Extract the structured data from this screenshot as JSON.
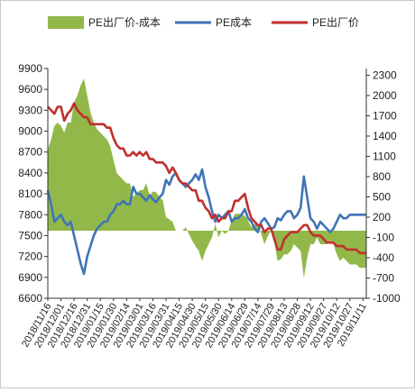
{
  "chart_data": {
    "type": "area+line",
    "legend": {
      "placement": "top",
      "items": [
        {
          "label": "PE出厂价-成本",
          "color": "#92b84a",
          "kind": "area"
        },
        {
          "label": "PE成本",
          "color": "#3f74b6",
          "kind": "line"
        },
        {
          "label": "PE出厂价",
          "color": "#c0302e",
          "kind": "line"
        }
      ]
    },
    "left_axis": {
      "ylim": [
        6600,
        9900
      ],
      "ticks": [
        6600,
        6900,
        7200,
        7500,
        7800,
        8100,
        8400,
        8700,
        9000,
        9300,
        9600,
        9900
      ],
      "tick_labels": [
        "6600",
        "6900",
        "7200",
        "7500",
        "7800",
        "8100",
        "8400",
        "8700",
        "9000",
        "9300",
        "9600",
        "9900"
      ]
    },
    "right_axis": {
      "ylim": [
        -1000,
        2400
      ],
      "ticks": [
        -1000,
        -700,
        -400,
        -100,
        200,
        500,
        800,
        1100,
        1400,
        1700,
        2000,
        2300
      ],
      "tick_labels": [
        "-1000",
        "-700",
        "-400",
        "-100",
        "200",
        "500",
        "800",
        "1100",
        "1400",
        "1700",
        "2000",
        "2300"
      ]
    },
    "x_axis": {
      "tick_labels": [
        "2018/11/16",
        "2018/12/01",
        "2018/12/16",
        "2018/12/31",
        "2019/01/15",
        "2019/01/30",
        "2019/02/14",
        "2019/03/01",
        "2019/03/16",
        "2019/03/31",
        "2019/04/15",
        "2019/04/30",
        "2019/05/15",
        "2019/05/30",
        "2019/06/14",
        "2019/06/29",
        "2019/07/14",
        "2019/07/29",
        "2019/08/13",
        "2019/08/28",
        "2019/09/12",
        "2019/09/27",
        "2019/10/12",
        "2019/10/27",
        "2019/11/11"
      ]
    },
    "x": [
      "2018/11/16",
      "2018/11/20",
      "2018/11/24",
      "2018/11/28",
      "2018/12/01",
      "2018/12/05",
      "2018/12/09",
      "2018/12/13",
      "2018/12/16",
      "2018/12/20",
      "2018/12/24",
      "2018/12/28",
      "2018/12/31",
      "2019/01/04",
      "2019/01/08",
      "2019/01/12",
      "2019/01/15",
      "2019/01/19",
      "2019/01/23",
      "2019/01/27",
      "2019/01/30",
      "2019/02/03",
      "2019/02/07",
      "2019/02/11",
      "2019/02/14",
      "2019/02/18",
      "2019/02/22",
      "2019/02/26",
      "2019/03/01",
      "2019/03/05",
      "2019/03/09",
      "2019/03/13",
      "2019/03/16",
      "2019/03/20",
      "2019/03/24",
      "2019/03/28",
      "2019/03/31",
      "2019/04/04",
      "2019/04/08",
      "2019/04/12",
      "2019/04/15",
      "2019/04/19",
      "2019/04/23",
      "2019/04/27",
      "2019/04/30",
      "2019/05/04",
      "2019/05/08",
      "2019/05/12",
      "2019/05/15",
      "2019/05/19",
      "2019/05/23",
      "2019/05/27",
      "2019/05/30",
      "2019/06/03",
      "2019/06/07",
      "2019/06/11",
      "2019/06/14",
      "2019/06/18",
      "2019/06/22",
      "2019/06/26",
      "2019/06/29",
      "2019/07/03",
      "2019/07/07",
      "2019/07/11",
      "2019/07/14",
      "2019/07/18",
      "2019/07/22",
      "2019/07/26",
      "2019/07/29",
      "2019/08/02",
      "2019/08/06",
      "2019/08/10",
      "2019/08/13",
      "2019/08/17",
      "2019/08/21",
      "2019/08/25",
      "2019/08/28",
      "2019/09/01",
      "2019/09/05",
      "2019/09/09",
      "2019/09/12",
      "2019/09/16",
      "2019/09/20",
      "2019/09/24",
      "2019/09/27",
      "2019/10/01",
      "2019/10/05",
      "2019/10/09",
      "2019/10/12",
      "2019/10/16",
      "2019/10/20",
      "2019/10/24",
      "2019/10/27",
      "2019/10/31",
      "2019/11/04",
      "2019/11/08",
      "2019/11/11",
      "2019/11/15"
    ],
    "series": [
      {
        "name": "PE成本",
        "axis": "left",
        "type": "line",
        "color": "#3f74b6",
        "values": [
          8150,
          7950,
          7700,
          7750,
          7800,
          7700,
          7650,
          7700,
          7500,
          7300,
          7100,
          6950,
          7200,
          7350,
          7500,
          7600,
          7650,
          7700,
          7700,
          7800,
          7850,
          7950,
          7950,
          8000,
          7950,
          7950,
          8200,
          8100,
          8100,
          8050,
          8000,
          8080,
          8020,
          7980,
          8050,
          8100,
          8300,
          8230,
          8350,
          8400,
          8300,
          8250,
          8200,
          8250,
          8300,
          8380,
          8300,
          8450,
          8200,
          8050,
          7850,
          7700,
          7800,
          7750,
          7800,
          7850,
          7700,
          7750,
          7750,
          7800,
          7880,
          7750,
          7700,
          7600,
          7550,
          7700,
          7750,
          7680,
          7600,
          7620,
          7750,
          7720,
          7800,
          7850,
          7850,
          7750,
          7800,
          7900,
          8350,
          8050,
          7750,
          7700,
          7600,
          7700,
          7650,
          7600,
          7550,
          7600,
          7700,
          7800,
          7750,
          7750,
          7800,
          7800,
          7800,
          7800,
          7800,
          7800
        ]
      },
      {
        "name": "PE出厂价",
        "axis": "left",
        "type": "line",
        "color": "#c0302e",
        "values": [
          9350,
          9300,
          9250,
          9350,
          9350,
          9150,
          9250,
          9300,
          9400,
          9300,
          9250,
          9200,
          9200,
          9100,
          9100,
          9100,
          9100,
          9100,
          9050,
          9050,
          8900,
          8800,
          8750,
          8750,
          8650,
          8650,
          8700,
          8650,
          8700,
          8650,
          8700,
          8600,
          8600,
          8550,
          8550,
          8550,
          8500,
          8400,
          8480,
          8400,
          8300,
          8250,
          8250,
          8200,
          8150,
          8150,
          8000,
          8000,
          7900,
          7850,
          7750,
          7800,
          7700,
          7750,
          7750,
          7850,
          7850,
          8000,
          8000,
          8050,
          8100,
          7900,
          7750,
          7700,
          7650,
          7650,
          7550,
          7600,
          7600,
          7450,
          7300,
          7300,
          7450,
          7500,
          7550,
          7550,
          7550,
          7600,
          7650,
          7650,
          7550,
          7500,
          7500,
          7500,
          7450,
          7400,
          7400,
          7400,
          7350,
          7350,
          7350,
          7300,
          7300,
          7300,
          7300,
          7250,
          7250,
          7250
        ]
      },
      {
        "name": "PE出厂价-成本",
        "axis": "right",
        "type": "area",
        "color": "#92b84a",
        "values": [
          1200,
          1350,
          1550,
          1600,
          1550,
          1450,
          1600,
          1600,
          1900,
          2000,
          2150,
          2250,
          2000,
          1750,
          1600,
          1500,
          1450,
          1400,
          1350,
          1250,
          1050,
          850,
          800,
          750,
          700,
          700,
          500,
          550,
          600,
          600,
          700,
          520,
          580,
          570,
          500,
          450,
          200,
          170,
          130,
          0,
          0,
          0,
          50,
          -50,
          -150,
          -230,
          -300,
          -450,
          -300,
          -200,
          -100,
          100,
          -100,
          0,
          -50,
          0,
          150,
          250,
          250,
          250,
          220,
          150,
          50,
          100,
          100,
          -50,
          -200,
          -80,
          0,
          -170,
          -450,
          -420,
          -350,
          -350,
          -300,
          -200,
          -250,
          -300,
          -700,
          -400,
          -200,
          -200,
          -100,
          -200,
          -200,
          -200,
          -150,
          -200,
          -350,
          -450,
          -400,
          -450,
          -500,
          -500,
          -500,
          -550,
          -550,
          -550
        ]
      }
    ]
  }
}
